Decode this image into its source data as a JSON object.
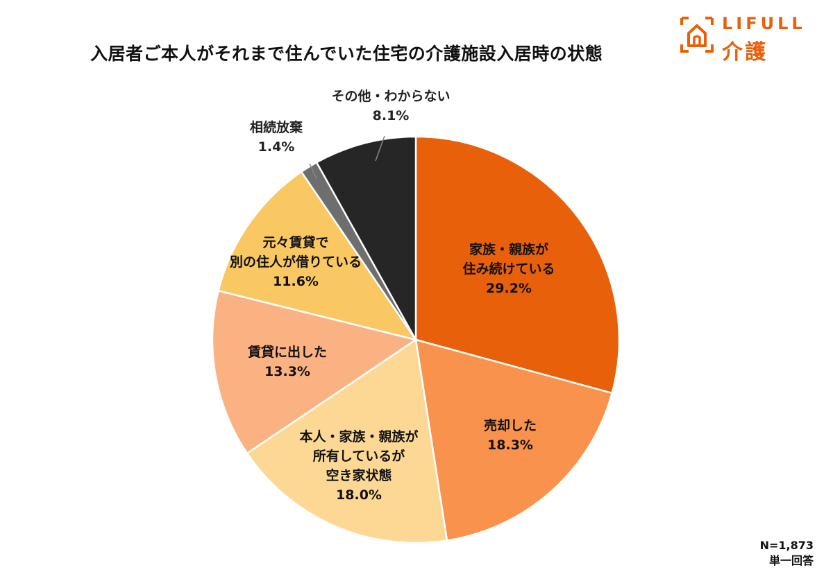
{
  "title": "入居者ご本人がそれまで住んでいた住宅の介護施設入居時の状態",
  "logo": {
    "en": "LIFULL",
    "jp": "介護"
  },
  "footnote": {
    "n": "N=1,873",
    "type": "単一回答"
  },
  "colors": {
    "brand": "#e8600a",
    "slices": [
      "#e8600a",
      "#f9924c",
      "#fcd894",
      "#fbb283",
      "#fac863",
      "#6e6e6e",
      "#262626"
    ]
  },
  "chart_data": {
    "type": "pie",
    "title": "入居者ご本人がそれまで住んでいた住宅の介護施設入居時の状態",
    "start": "12 o'clock, clockwise",
    "slices": [
      {
        "label": [
          "家族・親族が",
          "住み続けている"
        ],
        "value": 29.2,
        "value_label": "29.2%"
      },
      {
        "label": [
          "売却した"
        ],
        "value": 18.3,
        "value_label": "18.3%"
      },
      {
        "label": [
          "本人・家族・親族が",
          "所有しているが",
          "空き家状態"
        ],
        "value": 18.0,
        "value_label": "18.0%"
      },
      {
        "label": [
          "賃貸に出した"
        ],
        "value": 13.3,
        "value_label": "13.3%"
      },
      {
        "label": [
          "元々賃貸で",
          "別の住人が借りている"
        ],
        "value": 11.6,
        "value_label": "11.6%"
      },
      {
        "label": [
          "相続放棄"
        ],
        "value": 1.4,
        "value_label": "1.4%"
      },
      {
        "label": [
          "その他・わからない"
        ],
        "value": 8.1,
        "value_label": "8.1%"
      }
    ]
  }
}
